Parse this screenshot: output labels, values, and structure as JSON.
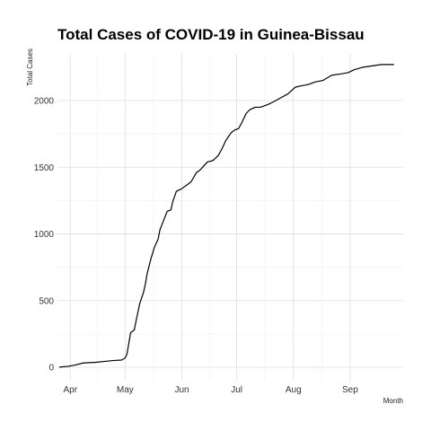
{
  "chart_data": {
    "type": "line",
    "title": "Total Cases of COVID-19 in Guinea-Bissau",
    "xlabel": "Month",
    "ylabel": "Total Cases",
    "x_range": [
      "2020-03-25",
      "2020-09-30"
    ],
    "ylim": [
      -100,
      2350
    ],
    "y_ticks": [
      0,
      500,
      1000,
      1500,
      2000
    ],
    "x_ticks": [
      {
        "date": "2020-04-01",
        "label": "Apr"
      },
      {
        "date": "2020-05-01",
        "label": "May"
      },
      {
        "date": "2020-06-01",
        "label": "Jun"
      },
      {
        "date": "2020-07-01",
        "label": "Jul"
      },
      {
        "date": "2020-08-01",
        "label": "Aug"
      },
      {
        "date": "2020-09-01",
        "label": "Sep"
      }
    ],
    "grid": true,
    "series_color": "#000000",
    "x": [
      "2020-03-26",
      "2020-03-31",
      "2020-04-04",
      "2020-04-08",
      "2020-04-15",
      "2020-04-20",
      "2020-04-25",
      "2020-04-29",
      "2020-05-01",
      "2020-05-02",
      "2020-05-03",
      "2020-05-04",
      "2020-05-06",
      "2020-05-07",
      "2020-05-09",
      "2020-05-11",
      "2020-05-12",
      "2020-05-13",
      "2020-05-15",
      "2020-05-17",
      "2020-05-19",
      "2020-05-20",
      "2020-05-22",
      "2020-05-24",
      "2020-05-26",
      "2020-05-27",
      "2020-05-29",
      "2020-06-01",
      "2020-06-02",
      "2020-06-04",
      "2020-06-06",
      "2020-06-09",
      "2020-06-11",
      "2020-06-13",
      "2020-06-15",
      "2020-06-18",
      "2020-06-21",
      "2020-06-23",
      "2020-06-25",
      "2020-06-28",
      "2020-06-30",
      "2020-07-02",
      "2020-07-04",
      "2020-07-06",
      "2020-07-08",
      "2020-07-11",
      "2020-07-14",
      "2020-07-16",
      "2020-07-18",
      "2020-07-21",
      "2020-07-25",
      "2020-07-29",
      "2020-08-02",
      "2020-08-05",
      "2020-08-09",
      "2020-08-13",
      "2020-08-17",
      "2020-08-22",
      "2020-08-27",
      "2020-08-31",
      "2020-09-03",
      "2020-09-08",
      "2020-09-13",
      "2020-09-18",
      "2020-09-25"
    ],
    "values": [
      2,
      8,
      18,
      33,
      38,
      45,
      52,
      55,
      70,
      100,
      180,
      260,
      280,
      350,
      480,
      560,
      620,
      700,
      810,
      900,
      960,
      1030,
      1100,
      1170,
      1180,
      1240,
      1320,
      1340,
      1350,
      1370,
      1390,
      1460,
      1480,
      1510,
      1540,
      1550,
      1590,
      1640,
      1700,
      1760,
      1780,
      1790,
      1840,
      1900,
      1930,
      1950,
      1950,
      1960,
      1970,
      1990,
      2020,
      2050,
      2100,
      2110,
      2120,
      2140,
      2150,
      2190,
      2200,
      2210,
      2230,
      2250,
      2260,
      2270,
      2270
    ]
  }
}
